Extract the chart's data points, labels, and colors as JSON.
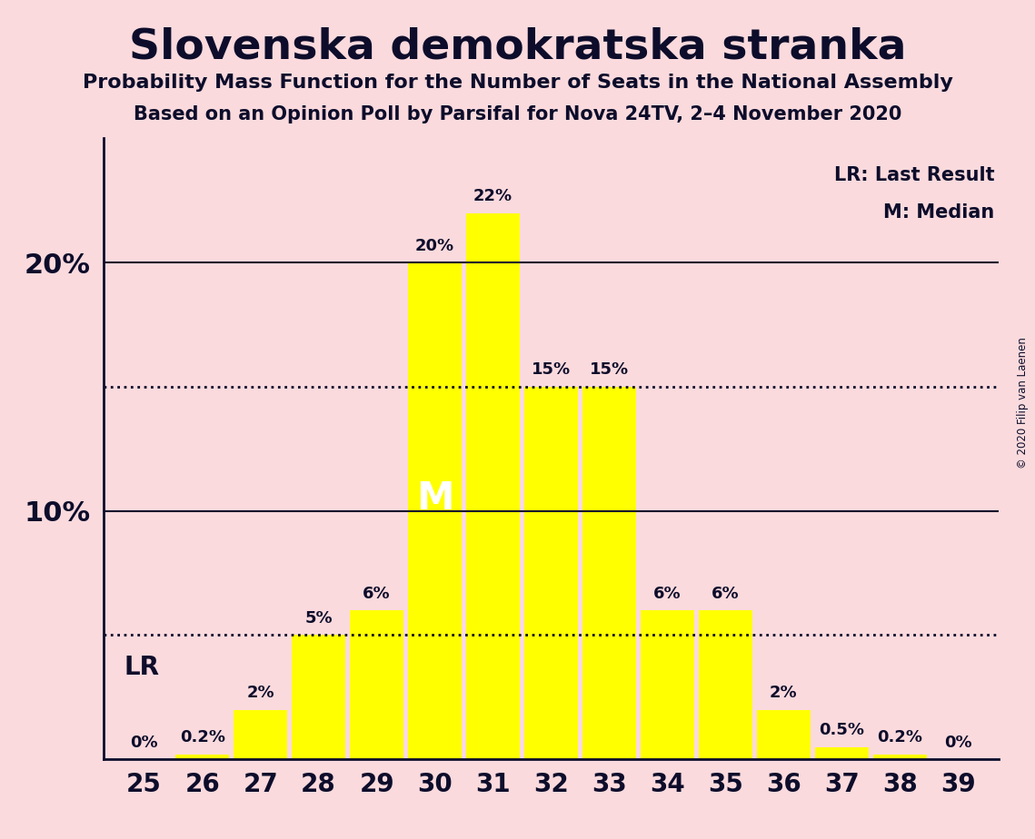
{
  "title": "Slovenska demokratska stranka",
  "subtitle1": "Probability Mass Function for the Number of Seats in the National Assembly",
  "subtitle2": "Based on an Opinion Poll by Parsifal for Nova 24TV, 2–4 November 2020",
  "copyright": "© 2020 Filip van Laenen",
  "categories": [
    25,
    26,
    27,
    28,
    29,
    30,
    31,
    32,
    33,
    34,
    35,
    36,
    37,
    38,
    39
  ],
  "values": [
    0.0,
    0.2,
    2.0,
    5.0,
    6.0,
    20.0,
    22.0,
    15.0,
    15.0,
    6.0,
    6.0,
    2.0,
    0.5,
    0.2,
    0.0
  ],
  "bar_color": "#FFFF00",
  "bar_edge_color": "#FFFF00",
  "background_color": "#FADADD",
  "text_color": "#0D0D2B",
  "ytick_values": [
    10,
    20
  ],
  "solid_line_values": [
    10.0,
    20.0
  ],
  "dotted_line_values": [
    5.0,
    15.0
  ],
  "lr_label": "LR",
  "median_label": "M",
  "legend_lr": "LR: Last Result",
  "legend_m": "M: Median",
  "ylim": [
    0,
    25
  ],
  "bar_labels_fontsize": 13,
  "ytick_fontsize": 22,
  "xtick_fontsize": 20
}
